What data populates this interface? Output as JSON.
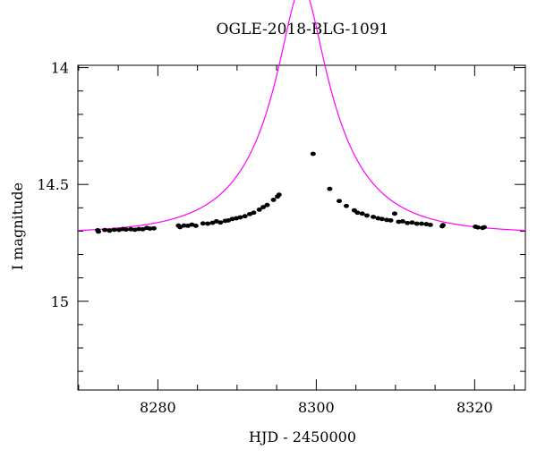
{
  "chart_data": {
    "type": "scatter",
    "title": "OGLE-2018-BLG-1091",
    "xlabel": "HJD - 2450000",
    "ylabel": "I magnitude",
    "xlim": [
      8269.9,
      8326.4
    ],
    "ylim": [
      15.38,
      13.99
    ],
    "y_inverted": true,
    "grid": false,
    "x_ticks": [
      8280,
      8300,
      8320
    ],
    "y_ticks": [
      14,
      14.5,
      15
    ],
    "x_minor_step": 5,
    "y_minor_step": 0.1,
    "colors": {
      "points": "#000000",
      "model": "#ff00ff",
      "frame": "#000000"
    },
    "series": [
      {
        "type": "scatter",
        "points": [
          [
            8272.4,
            14.696
          ],
          [
            8272.5,
            14.702
          ],
          [
            8273.3,
            14.695
          ],
          [
            8273.9,
            14.698
          ],
          [
            8274.5,
            14.694
          ],
          [
            8275.1,
            14.695
          ],
          [
            8275.6,
            14.691
          ],
          [
            8276.0,
            14.693
          ],
          [
            8276.6,
            14.692
          ],
          [
            8277.1,
            14.694
          ],
          [
            8277.6,
            14.691
          ],
          [
            8278.1,
            14.692
          ],
          [
            8278.6,
            14.686
          ],
          [
            8279.0,
            14.689
          ],
          [
            8279.5,
            14.688
          ],
          [
            8282.6,
            14.676
          ],
          [
            8282.8,
            14.683
          ],
          [
            8283.3,
            14.676
          ],
          [
            8283.8,
            14.677
          ],
          [
            8284.3,
            14.672
          ],
          [
            8284.8,
            14.677
          ],
          [
            8285.7,
            14.667
          ],
          [
            8286.3,
            14.668
          ],
          [
            8286.9,
            14.664
          ],
          [
            8287.4,
            14.658
          ],
          [
            8287.9,
            14.663
          ],
          [
            8288.5,
            14.656
          ],
          [
            8288.9,
            14.654
          ],
          [
            8289.4,
            14.648
          ],
          [
            8289.9,
            14.645
          ],
          [
            8290.4,
            14.641
          ],
          [
            8291.0,
            14.636
          ],
          [
            8291.6,
            14.627
          ],
          [
            8292.1,
            14.621
          ],
          [
            8292.8,
            14.608
          ],
          [
            8293.3,
            14.597
          ],
          [
            8293.8,
            14.588
          ],
          [
            8294.6,
            14.566
          ],
          [
            8295.1,
            14.552
          ],
          [
            8295.3,
            14.544
          ],
          [
            8299.6,
            14.369
          ],
          [
            8301.7,
            14.519
          ],
          [
            8302.9,
            14.571
          ],
          [
            8303.8,
            14.592
          ],
          [
            8304.8,
            14.611
          ],
          [
            8305.2,
            14.621
          ],
          [
            8305.8,
            14.625
          ],
          [
            8306.4,
            14.633
          ],
          [
            8307.2,
            14.639
          ],
          [
            8307.8,
            14.645
          ],
          [
            8308.3,
            14.648
          ],
          [
            8308.9,
            14.652
          ],
          [
            8309.4,
            14.654
          ],
          [
            8309.9,
            14.625
          ],
          [
            8310.4,
            14.66
          ],
          [
            8310.9,
            14.658
          ],
          [
            8311.5,
            14.665
          ],
          [
            8312.1,
            14.663
          ],
          [
            8312.7,
            14.668
          ],
          [
            8313.3,
            14.668
          ],
          [
            8313.9,
            14.67
          ],
          [
            8314.4,
            14.673
          ],
          [
            8315.9,
            14.679
          ],
          [
            8316.0,
            14.674
          ],
          [
            8320.1,
            14.681
          ],
          [
            8320.4,
            14.684
          ],
          [
            8321.0,
            14.686
          ],
          [
            8321.2,
            14.683
          ]
        ]
      },
      {
        "type": "line",
        "model": {
          "baseline": 14.71,
          "u0": 0.238,
          "t0": 8298.2,
          "tE": 10.5,
          "blend_fraction": 0.5
        }
      }
    ]
  }
}
